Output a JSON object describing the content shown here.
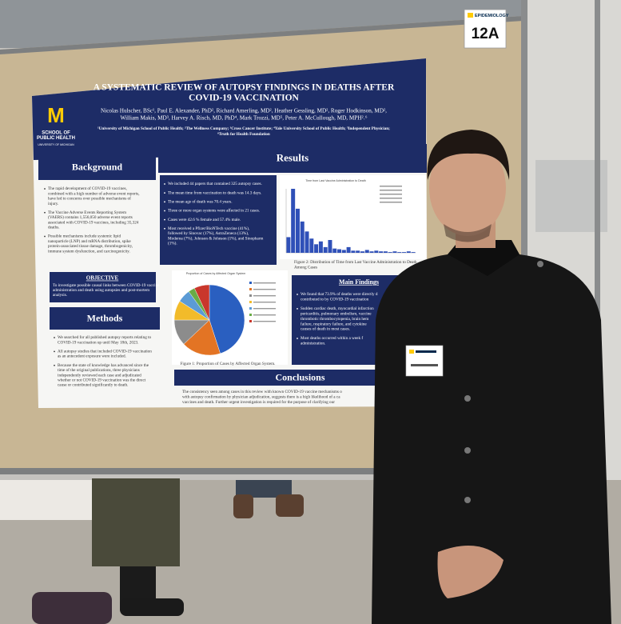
{
  "booth_sign": {
    "logo_text": "EPIDEMIOLOGY",
    "number": "12A"
  },
  "poster": {
    "logo": {
      "letter": "M",
      "school": [
        "SCHOOL OF",
        "PUBLIC HEALTH"
      ],
      "university": "UNIVERSITY OF MICHIGAN"
    },
    "title": [
      "A SYSTEMATIC REVIEW OF AUTOPSY FINDINGS IN DEATHS AFTER",
      "COVID-19 VACCINATION"
    ],
    "authors": [
      "Nicolas Hulscher, BSc¹, Paul E. Alexander, PhD², Richard Amerling, MD², Heather Gessling, MD², Roger Hodkinson, MD²,",
      "William Makis, MD³, Harvey A. Risch, MD, PhD⁴, Mark Trozzi, MD⁵, Peter A. McCullough, MD, MPH²˒⁶"
    ],
    "affiliations": [
      "¹University of Michigan School of Public Health; ²The Wellness Company; ³Cross Cancer Institute; ⁴Yale University School of Public Health; ⁵Independent Physician;",
      "⁶Truth for Health Foundation"
    ],
    "background": {
      "heading": "Background",
      "bullets": [
        [
          "The rapid development of COVID-19 vaccines,",
          "combined with a high number of adverse event reports,",
          "have led to concerns over possible mechanisms of",
          "injury."
        ],
        [
          "The Vaccine Adverse Events Reporting System",
          "(VAERS) contains 1,556,050 adverse event reports",
          "associated with COVID-19 vaccines, including 35,324",
          "deaths."
        ],
        [
          "Possible mechanisms include systemic lipid",
          "nanoparticle (LNP) and mRNA distribution, spike",
          "protein-associated tissue damage, thrombogenicity,",
          "immune system dysfunction, and carcinogenicity."
        ]
      ]
    },
    "objective": {
      "heading": "OBJECTIVE",
      "text": [
        "To investigate possible causal links between COVID-19 vaccine",
        "administration and death using autopsies and post-mortem",
        "analysis."
      ]
    },
    "methods": {
      "heading": "Methods",
      "bullets": [
        [
          "We searched for all published autopsy reports relating to",
          "COVID-19 vaccination up until May 18th, 2023."
        ],
        [
          "All autopsy studies that included COVID-19 vaccination",
          "as an antecedent exposure were included."
        ],
        [
          "Because the state of knowledge has advanced since the",
          "time of the original publications, three physicians",
          "independently reviewed each case and adjudicated",
          "whether or not COVID-19 vaccination was the direct",
          "cause or contributed significantly to death."
        ]
      ]
    },
    "results": {
      "heading": "Results",
      "bullets": [
        [
          "We included 44 papers that contained 325 autopsy cases."
        ],
        [
          "The mean time from vaccination to death was 14.3 days."
        ],
        [
          "The mean age of death was 70.4 years."
        ],
        [
          "Three or more organ systems were affected in 21 cases."
        ],
        [
          "Cases were 42.6 % female and 57.4% male."
        ],
        [
          "Most received a Pfizer/BioNTech vaccine (41%),",
          "followed by Sinovac (17%), AstraZeneca (13%),",
          "Moderna (7%), Johnson & Johnson (1%), and Sinopharm",
          "(1%)."
        ]
      ]
    },
    "figure2": {
      "type": "bar",
      "title": "Time from Last Vaccine Administration to Death",
      "values": [
        22,
        90,
        62,
        44,
        30,
        20,
        12,
        16,
        8,
        18,
        6,
        5,
        4,
        8,
        3,
        3,
        2,
        4,
        2,
        3,
        2,
        2,
        1,
        2,
        1,
        1,
        2,
        1
      ],
      "color": "#2f50b8",
      "caption": [
        "Figure 2: Distribution of Time from Last Vaccine Administration to Death",
        "Among Cases"
      ]
    },
    "figure1": {
      "type": "pie",
      "title": "Proportion of Cases by Affected Organ System",
      "values": [
        45,
        18,
        12,
        9,
        6,
        3,
        7
      ],
      "colors": [
        "#2a5fc0",
        "#e37424",
        "#8c8c8c",
        "#f2bb2a",
        "#5b9bd5",
        "#6aac46",
        "#c9372c"
      ],
      "caption": "Figure 1: Proportion of Cases by Affected Organ System."
    },
    "main_findings": {
      "heading": "Main Findings",
      "bullets": [
        [
          "We found that 73.9% of deaths were directly d",
          "contributed to by COVID-19 vaccination"
        ],
        [
          "Sudden cardiac death, myocardial infarction",
          "pericarditis, pulmonary embolism, vaccine",
          "thrombotic thrombocytopenia, brain hem",
          "failure, respiratory failure, and cytokine",
          "causes of death in most cases."
        ],
        [
          "Most deaths occurred within a week f",
          "administration."
        ]
      ]
    },
    "conclusions": {
      "heading": "Conclusions",
      "text": [
        "The consistency seen among cases in this review with known COVID-19 vaccine mechanisms o",
        "with autopsy confirmation by physician adjudication, suggests there is a high likelihood of a ca",
        "vaccines and death. Further urgent investigation is required for the purpose of clarifying our"
      ]
    }
  }
}
